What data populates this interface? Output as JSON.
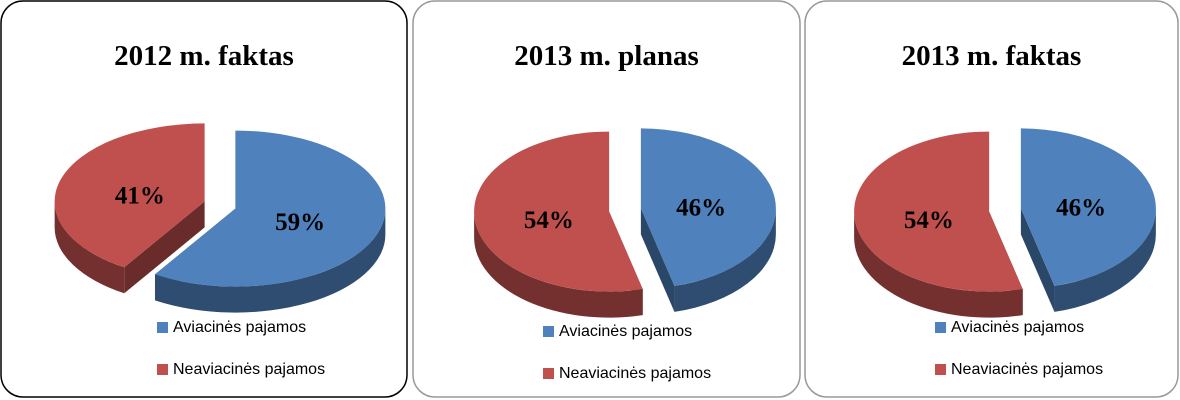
{
  "chart_data": [
    {
      "type": "pie",
      "title": "2012 m. faktas",
      "categories": [
        "Aviacinės pajamos",
        "Neaviacinės pajamos"
      ],
      "values": [
        59,
        41
      ],
      "value_labels": [
        "59%",
        "41%"
      ],
      "colors": [
        "#4f81bd",
        "#c0504d"
      ]
    },
    {
      "type": "pie",
      "title": "2013 m. planas",
      "categories": [
        "Aviacinės pajamos",
        "Neaviacinės pajamos"
      ],
      "values": [
        46,
        54
      ],
      "value_labels": [
        "46%",
        "54%"
      ],
      "colors": [
        "#4f81bd",
        "#c0504d"
      ]
    },
    {
      "type": "pie",
      "title": "2013 m. faktas",
      "categories": [
        "Aviacinės pajamos",
        "Neaviacinės pajamos"
      ],
      "values": [
        46,
        54
      ],
      "value_labels": [
        "46%",
        "54%"
      ],
      "colors": [
        "#4f81bd",
        "#c0504d"
      ]
    }
  ]
}
